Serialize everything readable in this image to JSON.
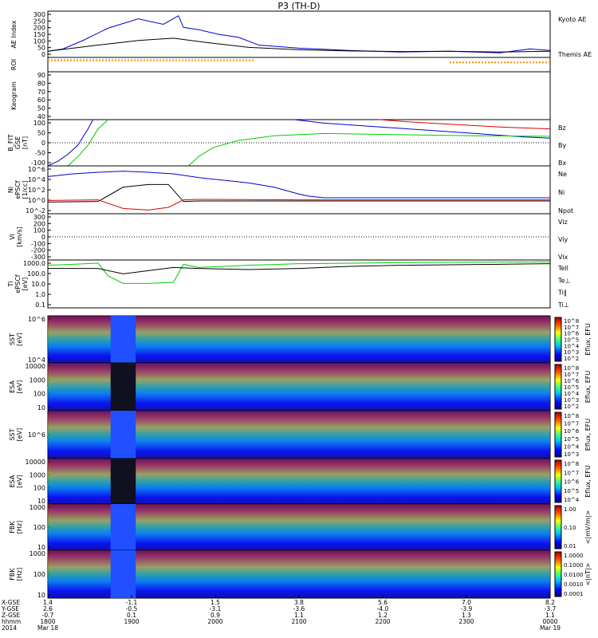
{
  "title": "P3 (TH-D)",
  "colors": {
    "blue": "#0000cc",
    "red": "#dd0000",
    "green": "#00cc00",
    "black": "#000000",
    "cyan": "#00d8d8",
    "orange": "#ff8800",
    "yellow": "#ffee00"
  },
  "chart_data": [
    {
      "id": "ae",
      "type": "line",
      "ylabel": [
        "AE Index"
      ],
      "ylim": [
        0,
        300
      ],
      "yticks": [
        "300",
        "250",
        "200",
        "150",
        "100",
        "50",
        "0"
      ],
      "legend": [
        {
          "name": "Kyoto AE",
          "color": "#0000cc"
        },
        {
          "name": "Themis AE",
          "color": "#000000"
        }
      ],
      "series": [
        {
          "name": "Kyoto AE",
          "x": [
            0,
            0.03,
            0.07,
            0.12,
            0.18,
            0.23,
            0.26,
            0.27,
            0.3,
            0.34,
            0.38,
            0.42,
            0.5,
            0.6,
            0.7,
            0.8,
            0.9,
            0.96,
            1.0
          ],
          "y": [
            40,
            55,
            110,
            190,
            250,
            215,
            270,
            195,
            180,
            150,
            130,
            80,
            60,
            45,
            35,
            40,
            30,
            55,
            45
          ]
        },
        {
          "name": "Themis AE",
          "x": [
            0,
            0.05,
            0.1,
            0.18,
            0.25,
            0.32,
            0.4,
            0.5,
            0.6,
            0.7,
            0.8,
            0.9,
            1.0
          ],
          "y": [
            40,
            60,
            80,
            110,
            125,
            95,
            65,
            50,
            42,
            38,
            40,
            35,
            40
          ]
        }
      ]
    },
    {
      "id": "roi",
      "type": "line",
      "ylabel": [
        "ROI"
      ],
      "series": [
        {
          "name": "",
          "x": [
            0,
            0.41
          ],
          "y": [
            1,
            1
          ]
        },
        {
          "name": "",
          "x": [
            0.8,
            1.0
          ],
          "y": [
            1,
            1
          ]
        }
      ]
    },
    {
      "id": "keogram",
      "type": "line",
      "ylabel": [
        "Keogram"
      ],
      "yticks": [
        "90",
        "80",
        "70",
        "60",
        "50",
        "40"
      ],
      "series": []
    },
    {
      "id": "bfield",
      "type": "line",
      "ylabel": [
        "B_FIT",
        "GSE",
        "[nT]"
      ],
      "ylim": [
        -100,
        100
      ],
      "yticks": [
        "100",
        "50",
        "0",
        "-50",
        "-100"
      ],
      "legend": [
        {
          "name": "Bz",
          "color": "#dd0000"
        },
        {
          "name": "By",
          "color": "#00cc00"
        },
        {
          "name": "Bx",
          "color": "#0000cc"
        }
      ],
      "series": [
        {
          "name": "Bx",
          "x": [
            0,
            0.02,
            0.04,
            0.06,
            0.08,
            0.09
          ],
          "y": [
            -100,
            -80,
            -50,
            -10,
            60,
            100
          ]
        },
        {
          "name": "By",
          "x": [
            0.04,
            0.06,
            0.08,
            0.1,
            0.12
          ],
          "y": [
            -100,
            -60,
            -10,
            60,
            100
          ]
        },
        {
          "name": "Bx2",
          "x": [
            0.49,
            0.55,
            0.65,
            0.75,
            0.85,
            0.95,
            1.0
          ],
          "y": [
            100,
            85,
            70,
            55,
            40,
            25,
            20
          ]
        },
        {
          "name": "By2",
          "x": [
            0.28,
            0.3,
            0.33,
            0.38,
            0.45,
            0.55,
            0.7,
            0.85,
            1.0
          ],
          "y": [
            -100,
            -60,
            -20,
            10,
            30,
            40,
            35,
            30,
            28
          ]
        },
        {
          "name": "Bz2",
          "x": [
            0.66,
            0.72,
            0.8,
            0.9,
            1.0
          ],
          "y": [
            100,
            90,
            80,
            68,
            60
          ]
        }
      ]
    },
    {
      "id": "density",
      "type": "line",
      "ylabel": [
        "Ni",
        "ePSCf",
        "[1/cc]"
      ],
      "scale": "log",
      "yticks": [
        "10^6",
        "10^4",
        "10^2",
        "10^0",
        "10^-2"
      ],
      "legend": [
        {
          "name": "Ne",
          "color": "#dd0000"
        },
        {
          "name": "Ni",
          "color": "#000000"
        },
        {
          "name": "Npot",
          "color": "#0000cc"
        }
      ],
      "series": [
        {
          "name": "Npot",
          "x": [
            0,
            0.05,
            0.1,
            0.15,
            0.2,
            0.25,
            0.3,
            0.35,
            0.4,
            0.45,
            0.5,
            0.52,
            0.55,
            1.0
          ],
          "y": [
            4.5,
            5.0,
            5.3,
            5.5,
            5.3,
            5.0,
            4.3,
            3.8,
            3.3,
            2.5,
            1.2,
            0.8,
            0.5,
            0.5
          ]
        },
        {
          "name": "Ni",
          "x": [
            0,
            0.1,
            0.15,
            0.2,
            0.24,
            0.27,
            0.3,
            0.5,
            1.0
          ],
          "y": [
            -0.3,
            -0.2,
            2.5,
            3.0,
            3.0,
            -0.2,
            -0.1,
            -0.1,
            -0.1
          ]
        },
        {
          "name": "Ne",
          "x": [
            0,
            0.1,
            0.15,
            0.2,
            0.24,
            0.27,
            0.3,
            0.5,
            1.0
          ],
          "y": [
            0.0,
            0.1,
            -1.5,
            -1.8,
            -1.3,
            0.1,
            0.2,
            0.1,
            0.1
          ]
        }
      ]
    },
    {
      "id": "velocity",
      "type": "line",
      "ylabel": [
        "Vi",
        "[km/s]"
      ],
      "ylim": [
        -300,
        300
      ],
      "yticks": [
        "300",
        "200",
        "100",
        "0",
        "-100",
        "-200",
        "-300"
      ],
      "legend": [
        {
          "name": "Viz",
          "color": "#dd0000"
        },
        {
          "name": "Viy",
          "color": "#00cc00"
        },
        {
          "name": "Vix",
          "color": "#0000cc"
        }
      ],
      "series": []
    },
    {
      "id": "temperature",
      "type": "line",
      "ylabel": [
        "Ti",
        "ePSCf",
        "[eV]"
      ],
      "scale": "log",
      "yticks": [
        "1000.0",
        "100.0",
        "10.0",
        "1.0",
        "0.1"
      ],
      "legend": [
        {
          "name": "Tell",
          "color": "#000000"
        },
        {
          "name": "Te⊥",
          "color": "#dd0000"
        },
        {
          "name": "Ti‖",
          "color": "#00cc00"
        },
        {
          "name": "Ti⊥",
          "color": "#0000cc"
        }
      ],
      "series": [
        {
          "name": "Ti‖",
          "x": [
            0,
            0.05,
            0.1,
            0.12,
            0.15,
            0.2,
            0.25,
            0.27,
            0.3,
            0.4,
            0.5,
            0.6,
            0.7,
            0.8,
            0.9,
            1.0
          ],
          "y": [
            2.8,
            2.9,
            3.0,
            1.8,
            1.1,
            1.1,
            1.2,
            2.9,
            2.6,
            2.8,
            2.95,
            3.0,
            3.05,
            3.08,
            3.1,
            3.12
          ]
        },
        {
          "name": "Tell",
          "x": [
            0,
            0.1,
            0.15,
            0.2,
            0.25,
            0.3,
            0.4,
            0.5,
            0.6,
            0.7,
            0.8,
            0.9,
            1.0
          ],
          "y": [
            2.5,
            2.5,
            2.0,
            2.3,
            2.6,
            2.5,
            2.4,
            2.5,
            2.7,
            2.8,
            2.85,
            2.9,
            2.95
          ]
        }
      ]
    },
    {
      "id": "sst_omni",
      "type": "heatmap",
      "ylabel": [
        "SST",
        "[eV]"
      ],
      "yticks": [
        "10^6",
        "10^4"
      ],
      "cbar_label": "Eflux, EFU",
      "cbar_ticks": [
        "10^8",
        "10^7",
        "10^6",
        "10^5",
        "10^4",
        "10^3",
        "10^2"
      ]
    },
    {
      "id": "esa_omni",
      "type": "heatmap",
      "ylabel": [
        "ESA",
        "[eV]"
      ],
      "yticks": [
        "10000",
        "1000",
        "100",
        "10"
      ],
      "cbar_label": "Eflux, EFU",
      "cbar_ticks": [
        "10^8",
        "10^7",
        "10^6",
        "10^5",
        "10^4",
        "10^3",
        "10^2"
      ]
    },
    {
      "id": "sst_ion",
      "type": "heatmap",
      "ylabel": [
        "SST",
        "[eV]"
      ],
      "yticks": [
        "10^6"
      ],
      "cbar_label": "Eflux, EFU",
      "cbar_ticks": [
        "10^8",
        "10^7",
        "10^6",
        "10^5",
        "10^4",
        "10^3"
      ]
    },
    {
      "id": "esa_ion",
      "type": "heatmap",
      "ylabel": [
        "ESA",
        "[eV]"
      ],
      "yticks": [
        "10000",
        "1000",
        "100",
        "10"
      ],
      "cbar_label": "Eflux, EFU",
      "cbar_ticks": [
        "10^8",
        "10^7",
        "10^6",
        "10^5",
        "10^4"
      ]
    },
    {
      "id": "fbk_e",
      "type": "heatmap",
      "ylabel": [
        "FBK",
        "[Hz]"
      ],
      "yticks": [
        "1000",
        "100",
        "10"
      ],
      "cbar_label": "<|mV/m|>",
      "cbar_ticks": [
        "1.00",
        "0.10",
        "0.01"
      ]
    },
    {
      "id": "fbk_b",
      "type": "heatmap",
      "ylabel": [
        "FBK",
        "[Hz]"
      ],
      "yticks": [
        "1000",
        "100",
        "10"
      ],
      "cbar_label": "<|nT|>",
      "cbar_ticks": [
        "1.0000",
        "0.1000",
        "0.0100",
        "0.0010",
        "0.0001"
      ]
    }
  ],
  "xaxis": {
    "row_labels": [
      "X-GSE",
      "Y-GSE",
      "Z-GSE",
      "hhmm",
      "2014"
    ],
    "ticks": [
      {
        "x": 0,
        "vals": [
          "1.4",
          "2.6",
          "-0.7",
          "1800",
          "Mar 18"
        ]
      },
      {
        "x": 0.1667,
        "vals": [
          "-1.1",
          "-0.5",
          "0.1",
          "1900",
          ""
        ]
      },
      {
        "x": 0.3333,
        "vals": [
          "1.5",
          "-3.1",
          "0.9",
          "2000",
          ""
        ]
      },
      {
        "x": 0.5,
        "vals": [
          "3.8",
          "-3.6",
          "1.1",
          "2100",
          ""
        ]
      },
      {
        "x": 0.6667,
        "vals": [
          "5.6",
          "-4.0",
          "1.2",
          "2200",
          ""
        ]
      },
      {
        "x": 0.8333,
        "vals": [
          "7.0",
          "-3.9",
          "1.3",
          "2300",
          ""
        ]
      },
      {
        "x": 1.0,
        "vals": [
          "8.2",
          "-3.7",
          "1.1",
          "0000",
          "Mar 19"
        ]
      }
    ]
  }
}
